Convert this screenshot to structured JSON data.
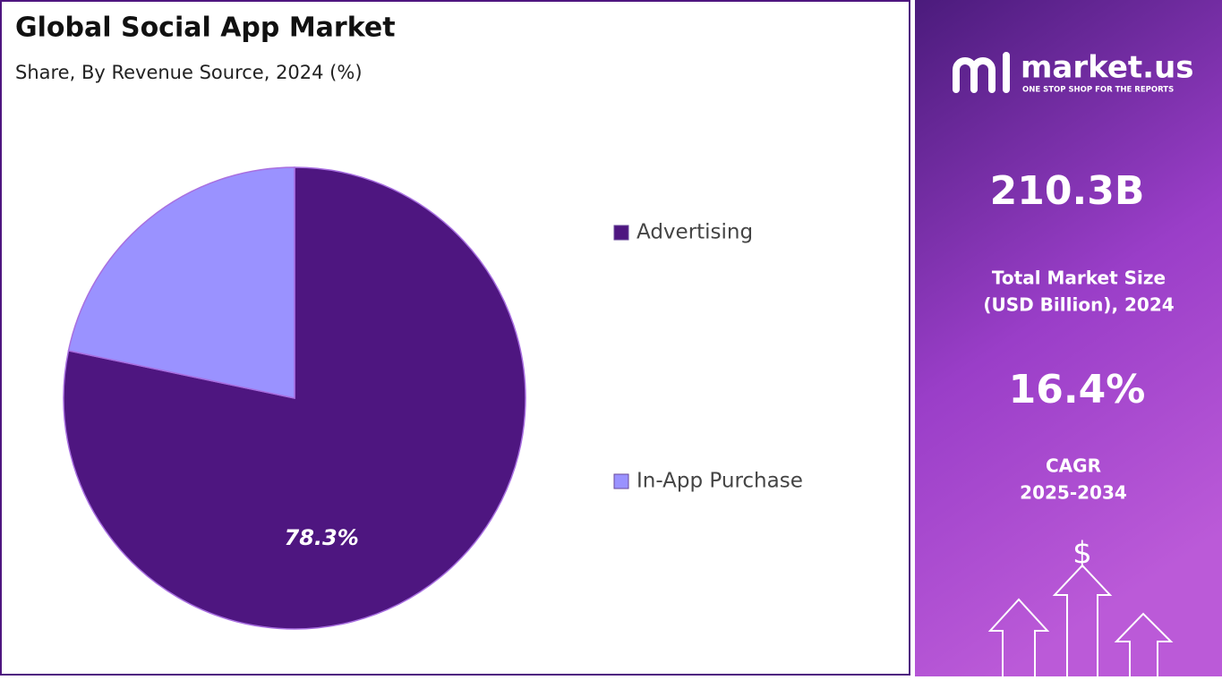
{
  "chart_data": {
    "type": "pie",
    "title": "Global Social App Market",
    "subtitle": "Share, By Revenue Source, 2024 (%)",
    "categories": [
      "Advertising",
      "In-App Purchase"
    ],
    "values": [
      78.3,
      21.7
    ],
    "value_labels": [
      "78.3%",
      null
    ],
    "colors": [
      "#4e1680",
      "#9a92ff"
    ],
    "legend": "right"
  },
  "sidebar": {
    "brand": "market.us",
    "tagline": "ONE STOP SHOP FOR THE REPORTS",
    "stats": [
      {
        "value": "210.3B",
        "label": [
          "Total Market Size",
          "(USD Billion), 2024"
        ]
      },
      {
        "value": "16.4%",
        "label": [
          "CAGR",
          "2025-2034"
        ]
      }
    ],
    "icon": "$"
  }
}
